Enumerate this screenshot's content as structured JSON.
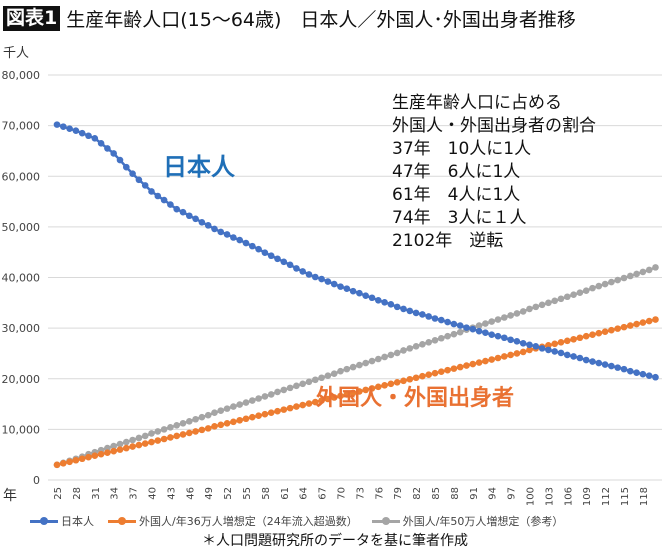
{
  "title": {
    "badge": "図表1",
    "text": "生産年齢人口(15〜64歳)　日本人／外国人･外国出身者推移"
  },
  "annotation": "生産年齢人口に占める\n外国人・外国出身者の割合\n37年　10人に1人\n47年　6人に1人\n61年　4人に1人\n74年　3人に１人\n2102年　逆転",
  "labels": {
    "japanese": "日本人",
    "foreign": "外国人・外国出身者"
  },
  "footnote": "＊人口問題研究所のデータを基に筆者作成",
  "colors": {
    "japanese": "#4472C4",
    "foreign36": "#ED7D31",
    "foreign50": "#A5A5A5",
    "label_japanese": "#1F6FB7",
    "label_foreign": "#E97132"
  },
  "chart_data": {
    "type": "line",
    "ylabel": "千人",
    "xlabel": "年",
    "ylim": [
      0,
      80000
    ],
    "yticks": [
      0,
      10000,
      20000,
      30000,
      40000,
      50000,
      60000,
      70000,
      80000
    ],
    "ytick_labels": [
      "0",
      "10,000",
      "20,000",
      "30,000",
      "40,000",
      "50,000",
      "60,000",
      "70,000",
      "80,000"
    ],
    "grid": true,
    "legend": "bottom",
    "xtick_labels": [
      "25",
      "28",
      "31",
      "34",
      "37",
      "40",
      "43",
      "46",
      "49",
      "52",
      "55",
      "58",
      "61",
      "64",
      "67",
      "70",
      "73",
      "76",
      "79",
      "82",
      "85",
      "88",
      "91",
      "94",
      "97",
      "100",
      "103",
      "106",
      "109",
      "112",
      "115",
      "118"
    ],
    "x": [
      25,
      26,
      27,
      28,
      29,
      30,
      31,
      32,
      33,
      34,
      35,
      36,
      37,
      38,
      39,
      40,
      41,
      42,
      43,
      44,
      45,
      46,
      47,
      48,
      49,
      50,
      51,
      52,
      53,
      54,
      55,
      56,
      57,
      58,
      59,
      60,
      61,
      62,
      63,
      64,
      65,
      66,
      67,
      68,
      69,
      70,
      71,
      72,
      73,
      74,
      75,
      76,
      77,
      78,
      79,
      80,
      81,
      82,
      83,
      84,
      85,
      86,
      87,
      88,
      89,
      90,
      91,
      92,
      93,
      94,
      95,
      96,
      97,
      98,
      99,
      100,
      101,
      102,
      103,
      104,
      105,
      106,
      107,
      108,
      109,
      110,
      111,
      112,
      113,
      114,
      115,
      116,
      117,
      118,
      119,
      120
    ],
    "series": [
      {
        "name": "日本人",
        "values": [
          70200,
          69800,
          69400,
          69000,
          68500,
          68000,
          67500,
          66500,
          65500,
          64500,
          63200,
          61800,
          60500,
          59300,
          58200,
          57000,
          56100,
          55300,
          54400,
          53500,
          52900,
          52200,
          51600,
          50900,
          50300,
          49600,
          49000,
          48500,
          47900,
          47400,
          46800,
          46200,
          45600,
          44900,
          44300,
          43700,
          43100,
          42500,
          41800,
          41200,
          40600,
          40100,
          39700,
          39200,
          38700,
          38200,
          37800,
          37300,
          36900,
          36400,
          36000,
          35500,
          35100,
          34700,
          34200,
          33800,
          33400,
          33000,
          32700,
          32300,
          31900,
          31600,
          31200,
          30800,
          30500,
          30100,
          29800,
          29400,
          29100,
          28700,
          28400,
          28100,
          27700,
          27400,
          27000,
          26700,
          26400,
          26000,
          25700,
          25400,
          25100,
          24700,
          24400,
          24100,
          23700,
          23400,
          23100,
          22800,
          22500,
          22200,
          21900,
          21500,
          21200,
          20900,
          20600,
          20300
        ]
      },
      {
        "name": "外国人/年36万人増想定（24年流入超過数）",
        "values": [
          3000,
          3300,
          3600,
          3900,
          4200,
          4500,
          4800,
          5100,
          5400,
          5700,
          6000,
          6300,
          6600,
          6900,
          7200,
          7500,
          7800,
          8100,
          8400,
          8700,
          9000,
          9300,
          9600,
          9900,
          10200,
          10600,
          10900,
          11200,
          11500,
          11800,
          12100,
          12400,
          12700,
          13000,
          13300,
          13600,
          13900,
          14200,
          14500,
          14800,
          15100,
          15400,
          15700,
          16000,
          16300,
          16600,
          16900,
          17200,
          17500,
          17800,
          18100,
          18400,
          18700,
          19000,
          19300,
          19600,
          19900,
          20200,
          20500,
          20800,
          21100,
          21400,
          21700,
          22000,
          22300,
          22600,
          22900,
          23200,
          23500,
          23800,
          24100,
          24400,
          24700,
          25000,
          25300,
          25700,
          26000,
          26300,
          26600,
          26900,
          27200,
          27500,
          27800,
          28100,
          28400,
          28700,
          29000,
          29300,
          29600,
          29900,
          30200,
          30500,
          30800,
          31100,
          31400,
          31700
        ]
      },
      {
        "name": "外国人/年50万人増想定（参考）",
        "values": [
          3000,
          3400,
          3800,
          4200,
          4600,
          5100,
          5500,
          5900,
          6300,
          6700,
          7100,
          7500,
          7900,
          8300,
          8700,
          9200,
          9600,
          10000,
          10400,
          10800,
          11200,
          11600,
          12000,
          12400,
          12800,
          13300,
          13700,
          14100,
          14500,
          14900,
          15300,
          15700,
          16100,
          16500,
          16900,
          17400,
          17800,
          18200,
          18600,
          19000,
          19400,
          19800,
          20200,
          20600,
          21000,
          21500,
          21900,
          22300,
          22700,
          23100,
          23500,
          23900,
          24300,
          24700,
          25100,
          25600,
          26000,
          26400,
          26800,
          27200,
          27600,
          28000,
          28400,
          28800,
          29200,
          29700,
          30100,
          30500,
          30900,
          31300,
          31700,
          32100,
          32500,
          32900,
          33300,
          33800,
          34200,
          34600,
          35000,
          35400,
          35800,
          36200,
          36600,
          37000,
          37400,
          37900,
          38300,
          38700,
          39100,
          39500,
          39900,
          40300,
          40700,
          41100,
          41500,
          42000
        ]
      }
    ]
  }
}
